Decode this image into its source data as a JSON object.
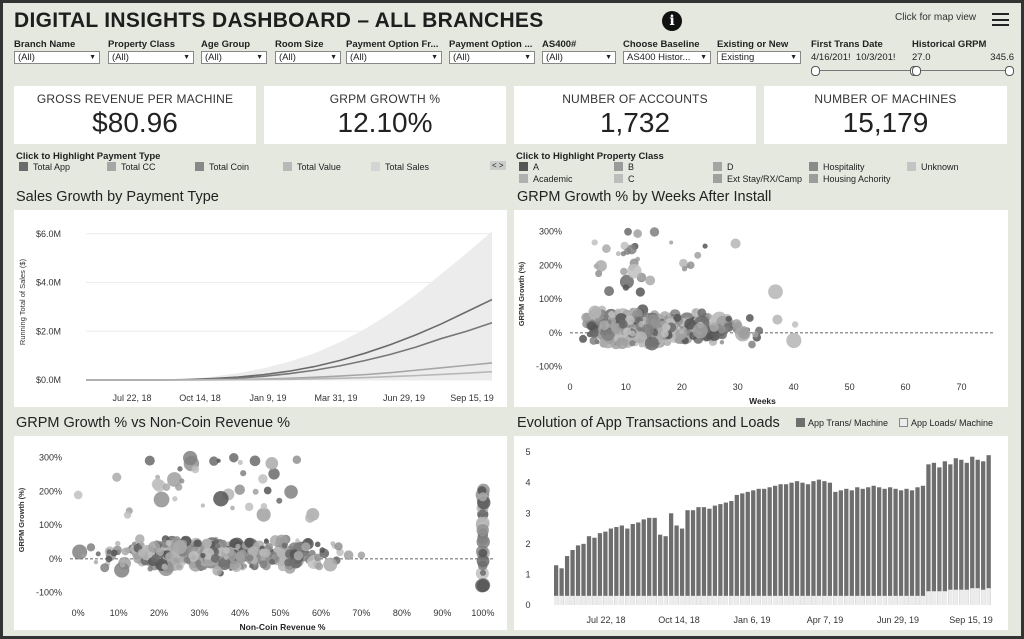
{
  "header": {
    "title": "DIGITAL INSIGHTS DASHBOARD – ALL BRANCHES",
    "map_link": "Click for map view"
  },
  "filters": [
    {
      "label": "Branch Name",
      "value": "(All)"
    },
    {
      "label": "Property Class",
      "value": "(All)"
    },
    {
      "label": "Age Group",
      "value": "(All)"
    },
    {
      "label": "Room Size",
      "value": "(All)"
    },
    {
      "label": "Payment Option Fr...",
      "value": "(All)"
    },
    {
      "label": "Payment Option ...",
      "value": "(All)"
    },
    {
      "label": "AS400#",
      "value": "(All)"
    },
    {
      "label": "Choose Baseline",
      "value": "AS400 Histor..."
    },
    {
      "label": "Existing or New",
      "value": "Existing"
    }
  ],
  "first_trans": {
    "label": "First Trans Date",
    "start": "4/16/201!",
    "end": "10/3/201!"
  },
  "hist_grpm": {
    "label": "Historical GRPM",
    "min": "27.0",
    "max": "345.6"
  },
  "kpis": [
    {
      "label": "GROSS REVENUE PER MACHINE",
      "value": "$80.96"
    },
    {
      "label": "GRPM GROWTH %",
      "value": "12.10%"
    },
    {
      "label": "NUMBER OF ACCOUNTS",
      "value": "1,732"
    },
    {
      "label": "NUMBER OF MACHINES",
      "value": "15,179"
    }
  ],
  "payment_legend": {
    "title": "Click to Highlight Payment Type",
    "items": [
      {
        "label": "Total App",
        "color": "#6b6b6b"
      },
      {
        "label": "Total CC",
        "color": "#a6a6a6"
      },
      {
        "label": "Total Coin",
        "color": "#888888"
      },
      {
        "label": "Total Value",
        "color": "#b8b8b8"
      },
      {
        "label": "Total Sales",
        "color": "#d4d4d4"
      }
    ]
  },
  "property_legend": {
    "title": "Click to Highlight Property Class",
    "items": [
      {
        "label": "A",
        "color": "#555555"
      },
      {
        "label": "B",
        "color": "#9a9a9a"
      },
      {
        "label": "D",
        "color": "#a5a5a5"
      },
      {
        "label": "Hospitality",
        "color": "#8a8a8a"
      },
      {
        "label": "Unknown",
        "color": "#c4c4c4"
      },
      {
        "label": "Academic",
        "color": "#b0b0b0"
      },
      {
        "label": "C",
        "color": "#bdbdbd"
      },
      {
        "label": "Ext Stay/RX/Camp",
        "color": "#a0a0a0"
      },
      {
        "label": "Housing Achority",
        "color": "#9c9c9c"
      }
    ]
  },
  "titles": {
    "sales": "Sales Growth by Payment Type",
    "weeks": "GRPM Growth % by Weeks After Install",
    "noncoin": "GRPM Growth % vs Non-Coin Revenue %",
    "evolution": "Evolution of App Transactions and Loads"
  },
  "evolution_legend": [
    {
      "label": "App Trans/ Machine",
      "color": "#6e6e6e"
    },
    {
      "label": "App Loads/ Machine",
      "color": "#ececec"
    }
  ],
  "chart_data": [
    {
      "type": "line",
      "ylabel": "Running Total of Sales ($)",
      "yticks": [
        "$0.0M",
        "$2.0M",
        "$4.0M",
        "$6.0M"
      ],
      "xticks": [
        "Jul 22, 18",
        "Oct 14, 18",
        "Jan 9, 19",
        "Mar 31, 19",
        "Jun 29, 19",
        "Sep 15, 19"
      ],
      "ylim": [
        0,
        6.4
      ],
      "x": [
        0,
        1,
        2,
        3,
        4,
        5,
        6,
        7,
        8,
        9,
        10,
        11,
        12,
        13,
        14,
        15,
        16
      ],
      "series": [
        {
          "values": [
            0,
            0,
            0,
            0,
            0.02,
            0.06,
            0.12,
            0.22,
            0.36,
            0.55,
            0.8,
            1.1,
            1.45,
            1.85,
            2.3,
            2.8,
            3.3
          ],
          "color": "#6b6b6b"
        },
        {
          "values": [
            0,
            0,
            0,
            0,
            0.01,
            0.04,
            0.08,
            0.15,
            0.26,
            0.4,
            0.58,
            0.8,
            1.05,
            1.35,
            1.7,
            2.0,
            2.35
          ],
          "color": "#777777"
        },
        {
          "values": [
            0,
            0,
            0,
            0,
            0,
            0.01,
            0.02,
            0.04,
            0.07,
            0.11,
            0.16,
            0.22,
            0.3,
            0.4,
            0.5,
            0.6,
            0.7
          ],
          "color": "#a6a6a6"
        },
        {
          "values": [
            0,
            0,
            0,
            0,
            0,
            0,
            0.01,
            0.02,
            0.03,
            0.05,
            0.07,
            0.1,
            0.14,
            0.18,
            0.23,
            0.28,
            0.34
          ],
          "color": "#b8b8b8"
        }
      ],
      "band_upper": [
        0,
        0,
        0,
        0,
        0.05,
        0.14,
        0.28,
        0.48,
        0.75,
        1.1,
        1.55,
        2.1,
        2.75,
        3.5,
        4.35,
        5.2,
        6.1
      ]
    },
    {
      "type": "scatter",
      "ylabel": "GRPM Growth (%)",
      "xlabel": "Weeks",
      "yticks": [
        "300%",
        "200%",
        "100%",
        "0%",
        "-100%"
      ],
      "xticks": [
        "0",
        "10",
        "20",
        "30",
        "40",
        "50",
        "60",
        "70"
      ],
      "xlim": [
        0,
        76
      ],
      "ylim": [
        -110,
        340
      ]
    },
    {
      "type": "scatter",
      "ylabel": "GRPM Growth (%)",
      "xlabel": "Non-Coin Revenue %",
      "yticks": [
        "300%",
        "200%",
        "100%",
        "0%",
        "-100%"
      ],
      "xticks": [
        "0%",
        "10%",
        "20%",
        "30%",
        "40%",
        "50%",
        "60%",
        "70%",
        "80%",
        "90%",
        "100%"
      ],
      "xlim": [
        -2,
        103
      ],
      "ylim": [
        -110,
        340
      ]
    },
    {
      "type": "bar",
      "yticks": [
        "0",
        "1",
        "2",
        "3",
        "4",
        "5"
      ],
      "xticks": [
        "Jul 22, 18",
        "Oct 14, 18",
        "Jan 6, 19",
        "Apr 7, 19",
        "Jun 29, 19",
        "Sep 15, 19"
      ],
      "ylim": [
        0,
        5.2
      ],
      "series": [
        {
          "name": "App Trans/ Machine",
          "values": [
            1.3,
            1.2,
            1.6,
            1.8,
            1.95,
            2.0,
            2.25,
            2.2,
            2.35,
            2.4,
            2.5,
            2.55,
            2.6,
            2.5,
            2.65,
            2.7,
            2.8,
            2.85,
            2.85,
            2.3,
            2.25,
            3.0,
            2.6,
            2.5,
            3.1,
            3.1,
            3.2,
            3.2,
            3.15,
            3.25,
            3.3,
            3.35,
            3.4,
            3.6,
            3.65,
            3.7,
            3.75,
            3.8,
            3.8,
            3.85,
            3.9,
            3.95,
            3.95,
            4.0,
            4.05,
            4.0,
            3.95,
            4.05,
            4.1,
            4.05,
            4.0,
            3.7,
            3.75,
            3.8,
            3.75,
            3.85,
            3.8,
            3.85,
            3.9,
            3.85,
            3.8,
            3.85,
            3.8,
            3.75,
            3.8,
            3.75,
            3.85,
            3.9,
            4.6,
            4.65,
            4.5,
            4.7,
            4.6,
            4.8,
            4.75,
            4.65,
            4.85,
            4.75,
            4.7,
            4.9
          ]
        },
        {
          "name": "App Loads/ Machine",
          "values": [
            0.3,
            0.3,
            0.3,
            0.3,
            0.3,
            0.3,
            0.3,
            0.3,
            0.3,
            0.3,
            0.3,
            0.3,
            0.3,
            0.3,
            0.3,
            0.3,
            0.3,
            0.3,
            0.3,
            0.3,
            0.3,
            0.3,
            0.3,
            0.3,
            0.3,
            0.3,
            0.3,
            0.3,
            0.3,
            0.3,
            0.3,
            0.3,
            0.3,
            0.3,
            0.3,
            0.3,
            0.3,
            0.3,
            0.3,
            0.3,
            0.3,
            0.3,
            0.3,
            0.3,
            0.3,
            0.3,
            0.3,
            0.3,
            0.3,
            0.3,
            0.3,
            0.3,
            0.3,
            0.3,
            0.3,
            0.3,
            0.3,
            0.3,
            0.3,
            0.3,
            0.3,
            0.3,
            0.3,
            0.3,
            0.3,
            0.3,
            0.3,
            0.3,
            0.45,
            0.45,
            0.45,
            0.45,
            0.5,
            0.5,
            0.5,
            0.5,
            0.55,
            0.55,
            0.5,
            0.55
          ]
        }
      ]
    }
  ]
}
